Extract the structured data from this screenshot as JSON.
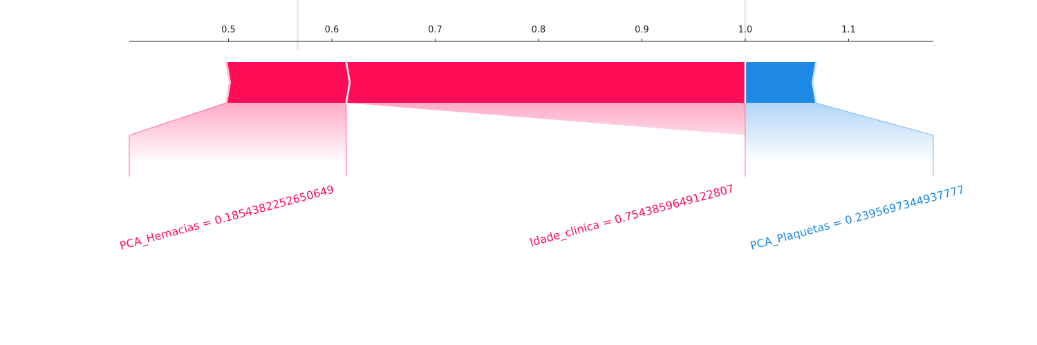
{
  "chart_data": {
    "type": "force",
    "xlim": [
      0.404,
      1.182
    ],
    "ticks": [
      {
        "value": 0.5,
        "label": "0.5"
      },
      {
        "value": 0.6,
        "label": "0.6"
      },
      {
        "value": 0.7,
        "label": "0.7"
      },
      {
        "value": 0.8,
        "label": "0.8"
      },
      {
        "value": 0.9,
        "label": "0.9"
      },
      {
        "value": 1.0,
        "label": "1.0"
      },
      {
        "value": 1.1,
        "label": "1.1"
      }
    ],
    "base_value": 0.567,
    "output_value": 1.0,
    "output_label": "1.00",
    "segments": [
      {
        "feature": "PCA_Hemacias",
        "label": "PCA_Hemacias = 0.1854382252650649",
        "start": 0.498,
        "end": 0.614,
        "direction": "positive"
      },
      {
        "feature": "Idade_clinica",
        "label": "Idade_clinica = 0.7543859649122807",
        "start": 0.614,
        "end": 1.0,
        "direction": "positive"
      },
      {
        "feature": "PCA_Plaquetas",
        "label": "PCA_Plaquetas = 0.2395697344937777",
        "start": 1.0,
        "end": 1.068,
        "direction": "negative"
      }
    ],
    "label_anchors": {
      "PCA_Hemacias": [
        0.404,
        0.614
      ],
      "Idade_clinica": [
        1.0,
        1.0
      ],
      "PCA_Plaquetas": [
        1.0,
        1.182
      ]
    },
    "colors": {
      "positive": "#ff0d57",
      "negative": "#1e88e5",
      "positive_line": "#ff6d94",
      "negative_line": "#7fbcec",
      "base_line": "#e6e6e6",
      "axis": "#222222"
    }
  }
}
